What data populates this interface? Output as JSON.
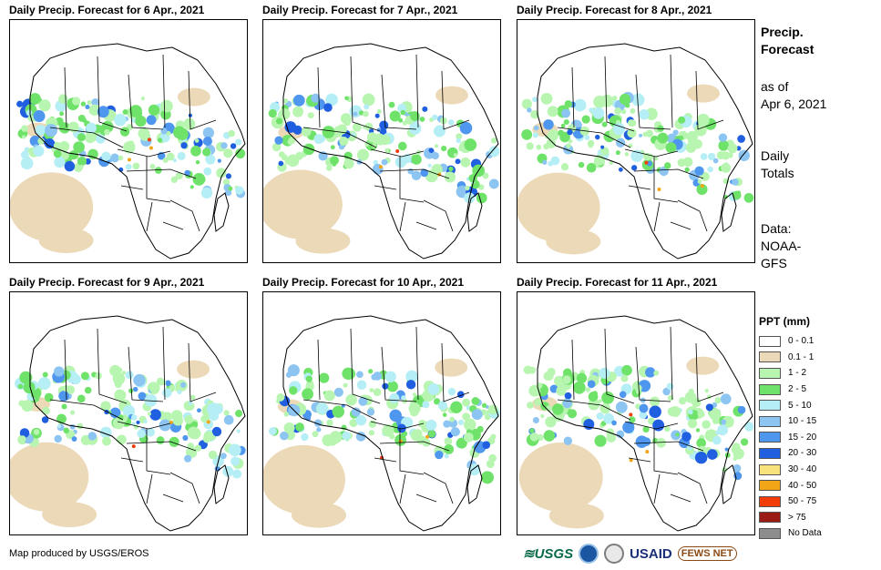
{
  "panels": [
    {
      "title": "Daily Precip. Forecast for 6 Apr., 2021"
    },
    {
      "title": "Daily Precip. Forecast for 7 Apr., 2021"
    },
    {
      "title": "Daily Precip. Forecast for 8 Apr., 2021"
    },
    {
      "title": "Daily Precip. Forecast for 9 Apr., 2021"
    },
    {
      "title": "Daily Precip. Forecast for 10 Apr., 2021"
    },
    {
      "title": "Daily Precip. Forecast for 11 Apr., 2021"
    }
  ],
  "side_info": {
    "heading_line1": "Precip.",
    "heading_line2": "Forecast",
    "asof_line1": "as of",
    "asof_line2": "Apr 6, 2021",
    "totals_line1": "Daily",
    "totals_line2": "Totals",
    "data_line1": "Data:",
    "data_line2": "NOAA-",
    "data_line3": "GFS"
  },
  "legend": {
    "title": "PPT (mm)",
    "items": [
      {
        "label": "0 - 0.1",
        "color": "#ffffff"
      },
      {
        "label": "0.1 - 1",
        "color": "#ecd9b8"
      },
      {
        "label": "1 - 2",
        "color": "#b7f5b0"
      },
      {
        "label": "2 - 5",
        "color": "#6fe26a"
      },
      {
        "label": "5 - 10",
        "color": "#b5eef5"
      },
      {
        "label": "10 - 15",
        "color": "#8cc4f2"
      },
      {
        "label": "15 - 20",
        "color": "#4f97ee"
      },
      {
        "label": "20 - 30",
        "color": "#1f5fe0"
      },
      {
        "label": "30 - 40",
        "color": "#f7e27c"
      },
      {
        "label": "40 - 50",
        "color": "#f2a516"
      },
      {
        "label": "50 - 75",
        "color": "#f23d0b"
      },
      {
        "label": "> 75",
        "color": "#9c1a14"
      },
      {
        "label": "No Data",
        "color": "#8d8d8d"
      }
    ]
  },
  "footer": {
    "credit": "Map produced by USGS/EROS"
  },
  "logos": {
    "usgs": "≋USGS",
    "usaid": "USAID",
    "fews": "FEWS NET"
  }
}
